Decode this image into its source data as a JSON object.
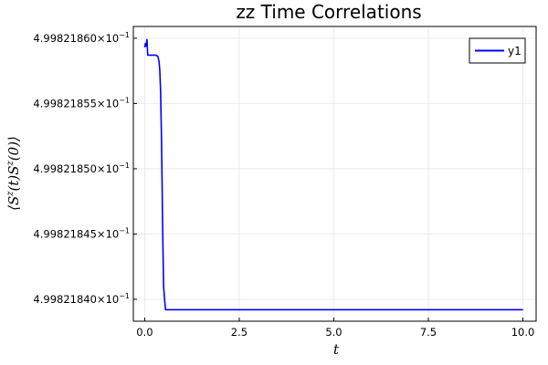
{
  "chart_data": {
    "type": "line",
    "title": "zz Time Correlations",
    "xlabel": "t",
    "ylabel": "⟨S^z(t)S^z(0)⟩",
    "ylabel_parts": {
      "open": "⟨S",
      "sup1": "z",
      "mid": "(t)S",
      "sup2": "z",
      "close": "(0)⟩"
    },
    "xlim": [
      -0.3,
      10.35
    ],
    "ylim": [
      0.49982183832,
      0.4998218609
    ],
    "x_ticks": [
      {
        "value": 0.0,
        "label": "0.0"
      },
      {
        "value": 2.5,
        "label": "2.5"
      },
      {
        "value": 5.0,
        "label": "5.0"
      },
      {
        "value": 7.5,
        "label": "7.5"
      },
      {
        "value": 10.0,
        "label": "10.0"
      }
    ],
    "y_ticks": [
      {
        "value": 0.49982184,
        "mantissa": "4.99821840×10",
        "exponent": "−1"
      },
      {
        "value": 0.499821845,
        "mantissa": "4.99821845×10",
        "exponent": "−1"
      },
      {
        "value": 0.49982185,
        "mantissa": "4.99821850×10",
        "exponent": "−1"
      },
      {
        "value": 0.499821855,
        "mantissa": "4.99821855×10",
        "exponent": "−1"
      },
      {
        "value": 0.49982186,
        "mantissa": "4.99821860×10",
        "exponent": "−1"
      }
    ],
    "grid": true,
    "legend": "top-right",
    "series": [
      {
        "name": "y1",
        "color": "#0000ff",
        "x": [
          0.0,
          0.02,
          0.04,
          0.06,
          0.08,
          0.1,
          0.2,
          0.3,
          0.35,
          0.38,
          0.4,
          0.42,
          0.44,
          0.46,
          0.47,
          0.48,
          0.5,
          0.52,
          0.55,
          1.0,
          2.0,
          3.0,
          4.0,
          5.0,
          6.0,
          7.0,
          8.0,
          9.0,
          10.0
        ],
        "y": [
          0.4998218593,
          0.4998218596,
          0.4998218594,
          0.4998218599,
          0.4998218587,
          0.4998218587,
          0.4998218587,
          0.4998218587,
          0.4998218586,
          0.4998218582,
          0.4998218575,
          0.499821856,
          0.499821853,
          0.499821849,
          0.4998218465,
          0.4998218445,
          0.499821841,
          0.4998218402,
          0.4998218392,
          0.4998218392,
          0.4998218392,
          0.4998218392,
          0.4998218392,
          0.4998218392,
          0.4998218392,
          0.4998218392,
          0.4998218392,
          0.4998218392,
          0.4998218392
        ]
      }
    ]
  }
}
